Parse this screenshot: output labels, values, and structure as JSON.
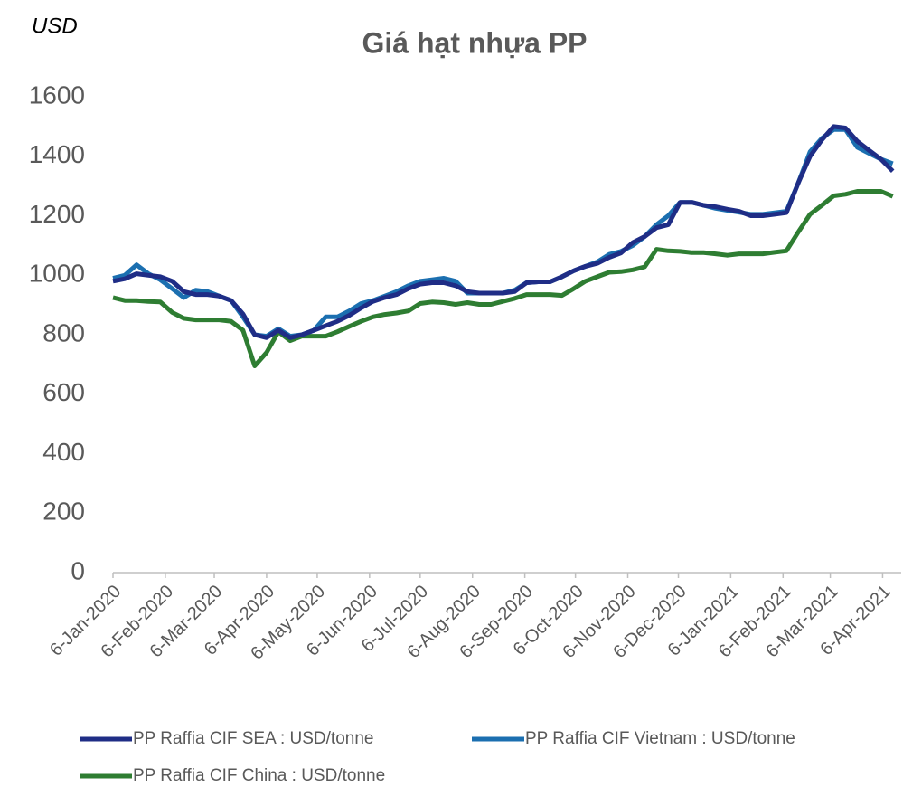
{
  "chart_data": {
    "type": "line",
    "title": "Giá hạt nhựa PP",
    "y_label": "USD",
    "x": [
      "2020-01-06",
      "2020-01-13",
      "2020-01-20",
      "2020-01-27",
      "2020-02-03",
      "2020-02-10",
      "2020-02-17",
      "2020-02-24",
      "2020-03-02",
      "2020-03-09",
      "2020-03-16",
      "2020-03-23",
      "2020-03-30",
      "2020-04-06",
      "2020-04-13",
      "2020-04-20",
      "2020-04-27",
      "2020-05-04",
      "2020-05-11",
      "2020-05-18",
      "2020-05-25",
      "2020-06-01",
      "2020-06-08",
      "2020-06-15",
      "2020-06-22",
      "2020-06-29",
      "2020-07-06",
      "2020-07-13",
      "2020-07-20",
      "2020-07-27",
      "2020-08-03",
      "2020-08-10",
      "2020-08-17",
      "2020-08-24",
      "2020-08-31",
      "2020-09-07",
      "2020-09-14",
      "2020-09-21",
      "2020-09-28",
      "2020-10-05",
      "2020-10-12",
      "2020-10-19",
      "2020-10-26",
      "2020-11-02",
      "2020-11-09",
      "2020-11-16",
      "2020-11-23",
      "2020-11-30",
      "2020-12-07",
      "2020-12-14",
      "2020-12-21",
      "2020-12-28",
      "2021-01-04",
      "2021-01-11",
      "2021-01-18",
      "2021-01-25",
      "2021-02-01",
      "2021-02-08",
      "2021-02-15",
      "2021-02-22",
      "2021-03-01",
      "2021-03-08",
      "2021-03-15",
      "2021-03-22",
      "2021-03-29",
      "2021-04-05",
      "2021-04-12"
    ],
    "series": [
      {
        "name": "PP Raffia CIF SEA : USD/tonne",
        "color": "#1f2d86",
        "values": [
          980,
          988,
          1005,
          1000,
          995,
          980,
          945,
          935,
          935,
          930,
          915,
          870,
          800,
          790,
          815,
          790,
          800,
          815,
          830,
          845,
          865,
          890,
          912,
          925,
          935,
          955,
          970,
          975,
          975,
          965,
          945,
          940,
          940,
          940,
          945,
          975,
          978,
          978,
          995,
          1015,
          1030,
          1040,
          1060,
          1075,
          1110,
          1130,
          1160,
          1170,
          1245,
          1245,
          1235,
          1230,
          1222,
          1215,
          1200,
          1200,
          1205,
          1210,
          1310,
          1400,
          1455,
          1500,
          1495,
          1450,
          1420,
          1390,
          1350
        ]
      },
      {
        "name": "PP Raffia CIF Vietnam : USD/tonne",
        "color": "#1b6fb0",
        "values": [
          990,
          1000,
          1035,
          1005,
          985,
          955,
          925,
          950,
          945,
          930,
          915,
          860,
          800,
          795,
          820,
          795,
          800,
          815,
          860,
          860,
          880,
          905,
          915,
          930,
          945,
          965,
          980,
          985,
          990,
          980,
          940,
          940,
          940,
          940,
          950,
          975,
          978,
          978,
          995,
          1015,
          1030,
          1045,
          1070,
          1080,
          1100,
          1130,
          1170,
          1200,
          1245,
          1245,
          1235,
          1225,
          1218,
          1212,
          1205,
          1205,
          1210,
          1215,
          1310,
          1415,
          1460,
          1490,
          1490,
          1430,
          1410,
          1390,
          1375
        ]
      },
      {
        "name": "PP Raffia CIF China : USD/tonne",
        "color": "#2e7d32",
        "values": [
          925,
          915,
          915,
          912,
          910,
          875,
          855,
          850,
          850,
          850,
          845,
          815,
          695,
          740,
          810,
          780,
          795,
          795,
          795,
          810,
          828,
          845,
          860,
          868,
          873,
          880,
          905,
          910,
          908,
          902,
          908,
          902,
          902,
          912,
          922,
          935,
          935,
          935,
          932,
          955,
          980,
          995,
          1010,
          1012,
          1018,
          1028,
          1087,
          1082,
          1080,
          1076,
          1076,
          1072,
          1067,
          1072,
          1072,
          1072,
          1077,
          1082,
          1145,
          1205,
          1235,
          1267,
          1272,
          1282,
          1282,
          1282,
          1265
        ]
      }
    ],
    "xlim": [
      "2020-01-06",
      "2021-04-17"
    ],
    "xticks": [
      {
        "value": "2020-01-06",
        "label": "6-Jan-2020"
      },
      {
        "value": "2020-02-06",
        "label": "6-Feb-2020"
      },
      {
        "value": "2020-03-06",
        "label": "6-Mar-2020"
      },
      {
        "value": "2020-04-06",
        "label": "6-Apr-2020"
      },
      {
        "value": "2020-05-06",
        "label": "6-May-2020"
      },
      {
        "value": "2020-06-06",
        "label": "6-Jun-2020"
      },
      {
        "value": "2020-07-06",
        "label": "6-Jul-2020"
      },
      {
        "value": "2020-08-06",
        "label": "6-Aug-2020"
      },
      {
        "value": "2020-09-06",
        "label": "6-Sep-2020"
      },
      {
        "value": "2020-10-06",
        "label": "6-Oct-2020"
      },
      {
        "value": "2020-11-06",
        "label": "6-Nov-2020"
      },
      {
        "value": "2020-12-06",
        "label": "6-Dec-2020"
      },
      {
        "value": "2021-01-06",
        "label": "6-Jan-2021"
      },
      {
        "value": "2021-02-06",
        "label": "6-Feb-2021"
      },
      {
        "value": "2021-03-06",
        "label": "6-Mar-2021"
      },
      {
        "value": "2021-04-06",
        "label": "6-Apr-2021"
      }
    ],
    "ylim": [
      0,
      1600
    ],
    "yticks": [
      0,
      200,
      400,
      600,
      800,
      1000,
      1200,
      1400,
      1600
    ],
    "grid": false,
    "legend": "bottom"
  }
}
